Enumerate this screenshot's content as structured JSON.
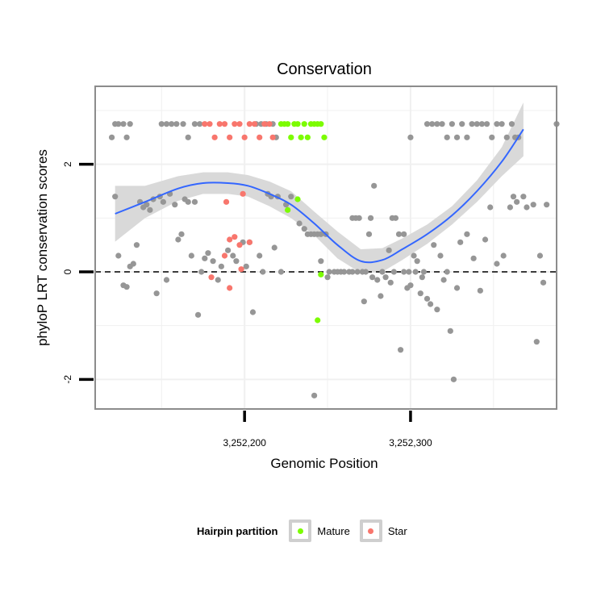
{
  "chart_data": {
    "type": "scatter",
    "title": "Conservation",
    "xlabel": "Genomic Position",
    "ylabel": "phyloP LRT conservation scores",
    "xlim": [
      3252110,
      3252388
    ],
    "ylim": [
      -2.55,
      3.45
    ],
    "x_ticks": [
      {
        "value": 3252200,
        "label": "3,252,200"
      },
      {
        "value": 3252300,
        "label": "3,252,300"
      }
    ],
    "y_ticks": [
      {
        "value": -2,
        "label": "-2"
      },
      {
        "value": 0,
        "label": "0"
      },
      {
        "value": 2,
        "label": "2"
      }
    ],
    "reference_line": {
      "y": 0,
      "style": "dashed"
    },
    "legend": {
      "title": "Hairpin partition",
      "entries": [
        {
          "label": "Mature",
          "color": "#7cfc00"
        },
        {
          "label": "Star",
          "color": "#f8766d"
        }
      ]
    },
    "colors": {
      "other": "#969696",
      "mature": "#7cfc00",
      "star": "#f8766d",
      "smooth": "#3366ff",
      "ribbon": "#d7d7d7",
      "panel": "#ffffff",
      "grid": "#f0f0f0",
      "border": "#8c8c8c"
    },
    "series": [
      {
        "name": "Other",
        "color": "#969696",
        "points": [
          [
            3252120,
            2.5
          ],
          [
            3252122,
            2.75
          ],
          [
            3252124,
            2.75
          ],
          [
            3252127,
            2.75
          ],
          [
            3252129,
            2.5
          ],
          [
            3252131,
            2.75
          ],
          [
            3252150,
            2.75
          ],
          [
            3252153,
            2.75
          ],
          [
            3252156,
            2.75
          ],
          [
            3252159,
            2.75
          ],
          [
            3252163,
            2.75
          ],
          [
            3252166,
            2.5
          ],
          [
            3252170,
            2.75
          ],
          [
            3252173,
            2.75
          ],
          [
            3252207,
            2.75
          ],
          [
            3252210,
            2.75
          ],
          [
            3252213,
            2.75
          ],
          [
            3252217,
            2.75
          ],
          [
            3252219,
            2.5
          ],
          [
            3252300,
            2.5
          ],
          [
            3252310,
            2.75
          ],
          [
            3252313,
            2.75
          ],
          [
            3252316,
            2.75
          ],
          [
            3252319,
            2.75
          ],
          [
            3252322,
            2.5
          ],
          [
            3252325,
            2.75
          ],
          [
            3252328,
            2.5
          ],
          [
            3252331,
            2.75
          ],
          [
            3252334,
            2.5
          ],
          [
            3252337,
            2.75
          ],
          [
            3252340,
            2.75
          ],
          [
            3252343,
            2.75
          ],
          [
            3252346,
            2.75
          ],
          [
            3252349,
            2.5
          ],
          [
            3252352,
            2.75
          ],
          [
            3252355,
            2.75
          ],
          [
            3252358,
            2.5
          ],
          [
            3252361,
            2.75
          ],
          [
            3252363,
            2.5
          ],
          [
            3252365,
            2.5
          ],
          [
            3252122,
            1.4
          ],
          [
            3252124,
            0.3
          ],
          [
            3252127,
            -0.25
          ],
          [
            3252129,
            -0.28
          ],
          [
            3252131,
            0.1
          ],
          [
            3252133,
            0.15
          ],
          [
            3252135,
            0.5
          ],
          [
            3252137,
            1.3
          ],
          [
            3252139,
            1.2
          ],
          [
            3252141,
            1.25
          ],
          [
            3252143,
            1.15
          ],
          [
            3252145,
            1.35
          ],
          [
            3252147,
            -0.4
          ],
          [
            3252149,
            1.4
          ],
          [
            3252151,
            1.3
          ],
          [
            3252153,
            -0.15
          ],
          [
            3252155,
            1.45
          ],
          [
            3252158,
            1.25
          ],
          [
            3252160,
            0.6
          ],
          [
            3252162,
            0.7
          ],
          [
            3252164,
            1.35
          ],
          [
            3252166,
            1.3
          ],
          [
            3252168,
            0.3
          ],
          [
            3252170,
            1.3
          ],
          [
            3252172,
            -0.8
          ],
          [
            3252174,
            0.0
          ],
          [
            3252176,
            0.25
          ],
          [
            3252178,
            0.35
          ],
          [
            3252181,
            0.2
          ],
          [
            3252184,
            -0.15
          ],
          [
            3252186,
            0.1
          ],
          [
            3252190,
            0.4
          ],
          [
            3252193,
            0.3
          ],
          [
            3252195,
            0.2
          ],
          [
            3252199,
            0.55
          ],
          [
            3252203,
            0.55
          ],
          [
            3252201,
            0.1
          ],
          [
            3252205,
            -0.75
          ],
          [
            3252209,
            0.3
          ],
          [
            3252211,
            0.0
          ],
          [
            3252214,
            1.45
          ],
          [
            3252216,
            1.4
          ],
          [
            3252218,
            0.45
          ],
          [
            3252220,
            1.4
          ],
          [
            3252222,
            0.0
          ],
          [
            3252225,
            1.25
          ],
          [
            3252228,
            1.4
          ],
          [
            3252233,
            0.9
          ],
          [
            3252236,
            0.8
          ],
          [
            3252238,
            0.7
          ],
          [
            3252240,
            0.7
          ],
          [
            3252242,
            0.7
          ],
          [
            3252244,
            0.7
          ],
          [
            3252246,
            0.7
          ],
          [
            3252249,
            0.7
          ],
          [
            3252250,
            -0.1
          ],
          [
            3252254,
            0.0
          ],
          [
            3252256,
            0.0
          ],
          [
            3252260,
            0.0
          ],
          [
            3252263,
            0.0
          ],
          [
            3252265,
            1.0
          ],
          [
            3252267,
            1.0
          ],
          [
            3252269,
            1.0
          ],
          [
            3252271,
            0.0
          ],
          [
            3252272,
            -0.55
          ],
          [
            3252275,
            0.7
          ],
          [
            3252276,
            1.0
          ],
          [
            3252277,
            -0.1
          ],
          [
            3252278,
            1.6
          ],
          [
            3252280,
            -0.15
          ],
          [
            3252282,
            -0.45
          ],
          [
            3252285,
            -0.1
          ],
          [
            3252287,
            0.4
          ],
          [
            3252289,
            1.0
          ],
          [
            3252291,
            1.0
          ],
          [
            3252293,
            0.7
          ],
          [
            3252294,
            -1.45
          ],
          [
            3252296,
            0.7
          ],
          [
            3252298,
            -0.3
          ],
          [
            3252299,
            0.0
          ],
          [
            3252300,
            -0.25
          ],
          [
            3252302,
            0.3
          ],
          [
            3252304,
            0.2
          ],
          [
            3252306,
            -0.4
          ],
          [
            3252308,
            0.0
          ],
          [
            3252310,
            -0.5
          ],
          [
            3252312,
            -0.6
          ],
          [
            3252314,
            0.5
          ],
          [
            3252316,
            -0.7
          ],
          [
            3252318,
            0.3
          ],
          [
            3252320,
            -0.15
          ],
          [
            3252322,
            0.0
          ],
          [
            3252324,
            -1.1
          ],
          [
            3252326,
            -2.0
          ],
          [
            3252328,
            -0.3
          ],
          [
            3252330,
            0.55
          ],
          [
            3252334,
            0.7
          ],
          [
            3252338,
            0.25
          ],
          [
            3252342,
            -0.35
          ],
          [
            3252345,
            0.6
          ],
          [
            3252348,
            1.2
          ],
          [
            3252352,
            0.15
          ],
          [
            3252356,
            0.3
          ],
          [
            3252360,
            1.2
          ],
          [
            3252362,
            1.4
          ],
          [
            3252364,
            1.3
          ],
          [
            3252368,
            1.4
          ],
          [
            3252370,
            1.2
          ],
          [
            3252374,
            1.25
          ],
          [
            3252376,
            -1.3
          ],
          [
            3252378,
            0.3
          ],
          [
            3252380,
            -0.2
          ],
          [
            3252382,
            1.25
          ],
          [
            3252388,
            2.75
          ],
          [
            3252242,
            -2.3
          ],
          [
            3252246,
            0.2
          ],
          [
            3252251,
            0.0
          ],
          [
            3252258,
            0.0
          ],
          [
            3252265,
            0.0
          ],
          [
            3252268,
            0.0
          ],
          [
            3252273,
            0.0
          ],
          [
            3252283,
            0.0
          ],
          [
            3252288,
            -0.2
          ],
          [
            3252290,
            0.0
          ],
          [
            3252296,
            0.0
          ],
          [
            3252303,
            0.0
          ],
          [
            3252307,
            -0.1
          ]
        ]
      },
      {
        "name": "Mature",
        "color": "#7cfc00",
        "points": [
          [
            3252222,
            2.75
          ],
          [
            3252224,
            2.75
          ],
          [
            3252226,
            2.75
          ],
          [
            3252228,
            2.5
          ],
          [
            3252230,
            2.75
          ],
          [
            3252232,
            2.75
          ],
          [
            3252234,
            2.5
          ],
          [
            3252236,
            2.75
          ],
          [
            3252238,
            2.5
          ],
          [
            3252240,
            2.75
          ],
          [
            3252242,
            2.75
          ],
          [
            3252244,
            2.75
          ],
          [
            3252246,
            2.75
          ],
          [
            3252248,
            2.5
          ],
          [
            3252226,
            1.15
          ],
          [
            3252232,
            1.35
          ],
          [
            3252244,
            -0.9
          ],
          [
            3252246,
            -0.05
          ]
        ]
      },
      {
        "name": "Star",
        "color": "#f8766d",
        "points": [
          [
            3252176,
            2.75
          ],
          [
            3252179,
            2.75
          ],
          [
            3252182,
            2.5
          ],
          [
            3252185,
            2.75
          ],
          [
            3252188,
            2.75
          ],
          [
            3252191,
            2.5
          ],
          [
            3252194,
            2.75
          ],
          [
            3252197,
            2.75
          ],
          [
            3252200,
            2.5
          ],
          [
            3252203,
            2.75
          ],
          [
            3252206,
            2.75
          ],
          [
            3252209,
            2.5
          ],
          [
            3252212,
            2.75
          ],
          [
            3252215,
            2.75
          ],
          [
            3252217,
            2.5
          ],
          [
            3252189,
            1.3
          ],
          [
            3252199,
            1.45
          ],
          [
            3252191,
            0.6
          ],
          [
            3252194,
            0.65
          ],
          [
            3252188,
            0.3
          ],
          [
            3252197,
            0.5
          ],
          [
            3252203,
            0.55
          ],
          [
            3252198,
            0.05
          ],
          [
            3252180,
            -0.1
          ],
          [
            3252191,
            -0.3
          ]
        ]
      }
    ],
    "smooth": {
      "name": "loess fit",
      "points": [
        [
          3252122,
          1.08
        ],
        [
          3252140,
          1.3
        ],
        [
          3252160,
          1.55
        ],
        [
          3252175,
          1.65
        ],
        [
          3252190,
          1.65
        ],
        [
          3252202,
          1.6
        ],
        [
          3252215,
          1.45
        ],
        [
          3252228,
          1.25
        ],
        [
          3252242,
          0.9
        ],
        [
          3252256,
          0.5
        ],
        [
          3252270,
          0.2
        ],
        [
          3252283,
          0.22
        ],
        [
          3252295,
          0.42
        ],
        [
          3252310,
          0.7
        ],
        [
          3252325,
          1.05
        ],
        [
          3252340,
          1.5
        ],
        [
          3252355,
          2.05
        ],
        [
          3252368,
          2.65
        ]
      ],
      "upper": [
        1.6,
        1.6,
        1.78,
        1.85,
        1.85,
        1.8,
        1.68,
        1.5,
        1.12,
        0.75,
        0.42,
        0.44,
        0.62,
        0.88,
        1.22,
        1.7,
        2.32,
        3.15
      ],
      "lower": [
        0.56,
        1.0,
        1.32,
        1.45,
        1.45,
        1.4,
        1.22,
        1.0,
        0.68,
        0.25,
        -0.02,
        0.0,
        0.22,
        0.52,
        0.88,
        1.3,
        1.78,
        2.15
      ]
    }
  }
}
